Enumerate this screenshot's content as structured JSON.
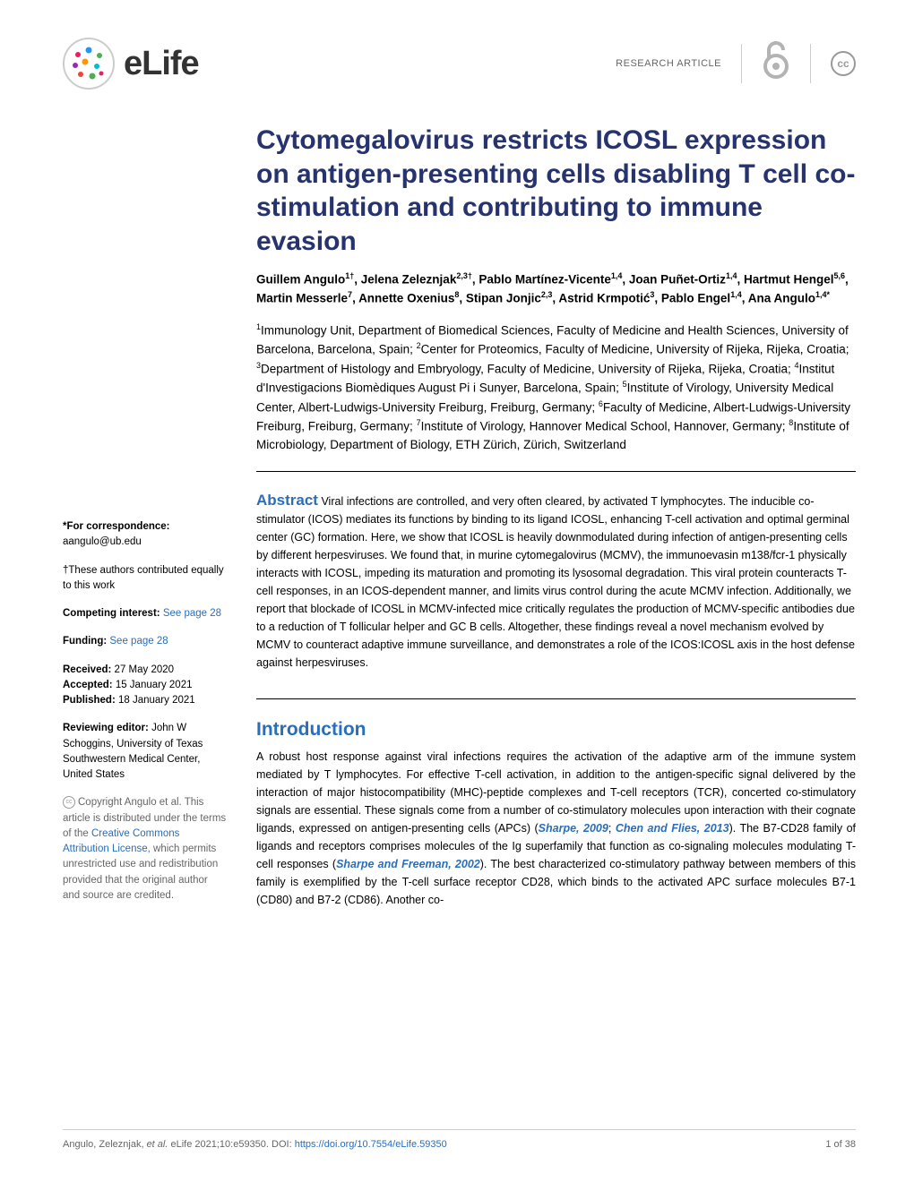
{
  "header": {
    "journal_name": "eLife",
    "article_type": "RESEARCH ARTICLE",
    "logo_colors": [
      "#e91e63",
      "#9c27b0",
      "#2196f3",
      "#4caf50",
      "#ff9800",
      "#f44336",
      "#00bcd4"
    ]
  },
  "title": "Cytomegalovirus restricts ICOSL expression on antigen-presenting cells disabling T cell co-stimulation and contributing to immune evasion",
  "authors": [
    {
      "name": "Guillem Angulo",
      "sup": "1†"
    },
    {
      "name": "Jelena Zeleznjak",
      "sup": "2,3†"
    },
    {
      "name": "Pablo Martínez-Vicente",
      "sup": "1,4"
    },
    {
      "name": "Joan Puñet-Ortiz",
      "sup": "1,4"
    },
    {
      "name": "Hartmut Hengel",
      "sup": "5,6"
    },
    {
      "name": "Martin Messerle",
      "sup": "7"
    },
    {
      "name": "Annette Oxenius",
      "sup": "8"
    },
    {
      "name": "Stipan Jonjic",
      "sup": "2,3"
    },
    {
      "name": "Astrid Krmpotić",
      "sup": "3"
    },
    {
      "name": "Pablo Engel",
      "sup": "1,4"
    },
    {
      "name": "Ana Angulo",
      "sup": "1,4*"
    }
  ],
  "affiliations": [
    {
      "num": "1",
      "text": "Immunology Unit, Department of Biomedical Sciences, Faculty of Medicine and Health Sciences, University of Barcelona, Barcelona, Spain"
    },
    {
      "num": "2",
      "text": "Center for Proteomics, Faculty of Medicine, University of Rijeka, Rijeka, Croatia"
    },
    {
      "num": "3",
      "text": "Department of Histology and Embryology, Faculty of Medicine, University of Rijeka, Rijeka, Croatia"
    },
    {
      "num": "4",
      "text": "Institut d'Investigacions Biomèdiques August Pi i Sunyer, Barcelona, Spain"
    },
    {
      "num": "5",
      "text": "Institute of Virology, University Medical Center, Albert-Ludwigs-University Freiburg, Freiburg, Germany"
    },
    {
      "num": "6",
      "text": "Faculty of Medicine, Albert-Ludwigs-University Freiburg, Freiburg, Germany"
    },
    {
      "num": "7",
      "text": "Institute of Virology, Hannover Medical School, Hannover, Germany"
    },
    {
      "num": "8",
      "text": "Institute of Microbiology, Department of Biology, ETH Zürich, Zürich, Switzerland"
    }
  ],
  "abstract": {
    "heading": "Abstract",
    "text": " Viral infections are controlled, and very often cleared, by activated T lymphocytes. The inducible co-stimulator (ICOS) mediates its functions by binding to its ligand ICOSL, enhancing T-cell activation and optimal germinal center (GC) formation. Here, we show that ICOSL is heavily downmodulated during infection of antigen-presenting cells by different herpesviruses. We found that, in murine cytomegalovirus (MCMV), the immunoevasin m138/fcr-1 physically interacts with ICOSL, impeding its maturation and promoting its lysosomal degradation. This viral protein counteracts T-cell responses, in an ICOS-dependent manner, and limits virus control during the acute MCMV infection. Additionally, we report that blockade of ICOSL in MCMV-infected mice critically regulates the production of MCMV-specific antibodies due to a reduction of T follicular helper and GC B cells. Altogether, these findings reveal a novel mechanism evolved by MCMV to counteract adaptive immune surveillance, and demonstrates a role of the ICOS:ICOSL axis in the host defense against herpesviruses."
  },
  "sidebar": {
    "correspondence_label": "*For correspondence:",
    "correspondence_email": "aangulo@ub.edu",
    "contrib_note": "†These authors contributed equally to this work",
    "competing_label": "Competing interest:",
    "competing_link": "See page 28",
    "funding_label": "Funding:",
    "funding_link": "See page 28",
    "received_label": "Received:",
    "received_value": "27 May 2020",
    "accepted_label": "Accepted:",
    "accepted_value": "15 January 2021",
    "published_label": "Published:",
    "published_value": "18 January 2021",
    "reviewing_label": "Reviewing editor:",
    "reviewing_value": "John W Schoggins, University of Texas Southwestern Medical Center, United States",
    "copyright_prefix": "Copyright Angulo et al. This article is distributed under the terms of the ",
    "copyright_link": "Creative Commons Attribution License,",
    "copyright_suffix": " which permits unrestricted use and redistribution provided that the original author and source are credited."
  },
  "introduction": {
    "heading": "Introduction",
    "text_before": "A robust host response against viral infections requires the activation of the adaptive arm of the immune system mediated by T lymphocytes. For effective T-cell activation, in addition to the antigen-specific signal delivered by the interaction of major histocompatibility (MHC)-peptide complexes and T-cell receptors (TCR), concerted co-stimulatory signals are essential. These signals come from a number of co-stimulatory molecules upon interaction with their cognate ligands, expressed on antigen-presenting cells (APCs) (",
    "cite1": "Sharpe, 2009",
    "sep1": "; ",
    "cite2": "Chen and Flies, 2013",
    "text_mid": "). The B7-CD28 family of ligands and receptors comprises molecules of the Ig superfamily that function as co-signaling molecules modulating T-cell responses (",
    "cite3": "Sharpe and Freeman, 2002",
    "text_after": "). The best characterized co-stimulatory pathway between members of this family is exemplified by the T-cell surface receptor CD28, which binds to the activated APC surface molecules B7-1 (CD80) and B7-2 (CD86). Another co-"
  },
  "footer": {
    "citation_prefix": "Angulo, Zeleznjak, ",
    "citation_italic": "et al.",
    "citation_suffix": " eLife 2021;10:e59350. DOI: ",
    "doi": "https://doi.org/10.7554/eLife.59350",
    "page": "1 of 38"
  },
  "colors": {
    "title_color": "#26336f",
    "link_color": "#2a6ebb",
    "heading_color": "#2a6ebb",
    "body_text_color": "#000000",
    "meta_text_color": "#666666"
  },
  "typography": {
    "title_fontsize": 30,
    "author_fontsize": 13.5,
    "body_fontsize": 12.5,
    "sidebar_fontsize": 11.5,
    "footer_fontsize": 11
  }
}
